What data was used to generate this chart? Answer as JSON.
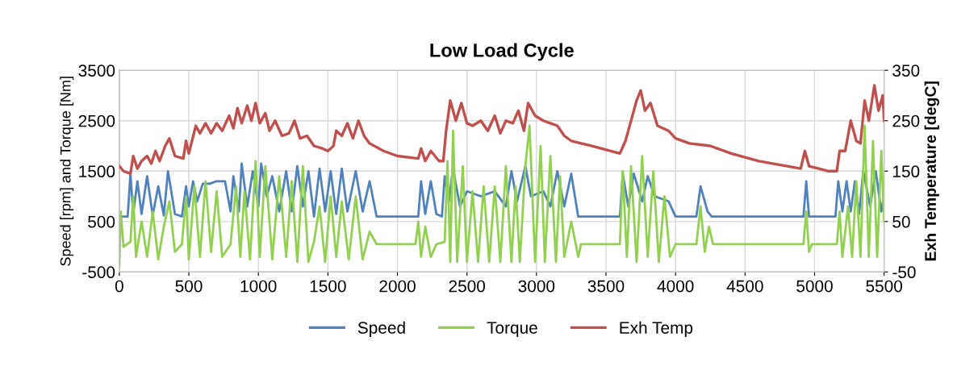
{
  "chart_data": {
    "type": "line",
    "title": "Low Load Cycle",
    "ylabel": "Speed [rpm] and Torque [Nm]",
    "y2label": "Exh Temperature [degC]",
    "xlim": [
      0,
      5500
    ],
    "xticks": [
      0,
      500,
      1000,
      1500,
      2000,
      2500,
      3000,
      3500,
      4000,
      4500,
      5000,
      5500
    ],
    "ylim": [
      -500,
      3500
    ],
    "yticks": [
      -500,
      500,
      1500,
      2500,
      3500
    ],
    "y2lim": [
      -50,
      350
    ],
    "y2ticks": [
      -50,
      50,
      150,
      250,
      350
    ],
    "grid": true,
    "legend": "bottom",
    "marker": "none",
    "line_style": "solid",
    "series": [
      {
        "name": "Speed",
        "color": "#4f81bd",
        "x": [
          0,
          60,
          80,
          100,
          130,
          160,
          200,
          240,
          280,
          320,
          350,
          400,
          450,
          480,
          500,
          530,
          560,
          600,
          650,
          700,
          760,
          800,
          820,
          860,
          880,
          920,
          960,
          1000,
          1020,
          1060,
          1100,
          1150,
          1200,
          1240,
          1280,
          1320,
          1360,
          1400,
          1440,
          1480,
          1520,
          1560,
          1600,
          1640,
          1700,
          1750,
          1800,
          1850,
          2150,
          2170,
          2200,
          2240,
          2280,
          2320,
          2340,
          2370,
          2400,
          2450,
          2500,
          2600,
          2700,
          2780,
          2820,
          2860,
          2920,
          2960,
          3050,
          3100,
          3150,
          3200,
          3250,
          3300,
          3600,
          3620,
          3660,
          3700,
          3760,
          3800,
          3850,
          3950,
          4000,
          4150,
          4180,
          4230,
          4260,
          4920,
          4940,
          4960,
          5150,
          5170,
          5200,
          5230,
          5260,
          5290,
          5320,
          5350,
          5400,
          5440,
          5480,
          5500
        ],
        "values": [
          600,
          600,
          1450,
          650,
          1300,
          650,
          1400,
          620,
          1200,
          620,
          1500,
          650,
          600,
          1200,
          800,
          1300,
          900,
          1250,
          1250,
          1300,
          1300,
          700,
          1400,
          700,
          1650,
          800,
          1500,
          800,
          1650,
          1000,
          1400,
          700,
          1500,
          700,
          1600,
          800,
          1500,
          600,
          1550,
          700,
          1500,
          650,
          1550,
          700,
          1500,
          700,
          1300,
          600,
          600,
          1300,
          650,
          1300,
          650,
          600,
          1400,
          900,
          1550,
          800,
          1100,
          1000,
          1100,
          800,
          1500,
          900,
          1600,
          1000,
          1100,
          800,
          1500,
          800,
          1450,
          600,
          600,
          1450,
          800,
          1450,
          900,
          1400,
          1000,
          900,
          600,
          600,
          1200,
          700,
          600,
          600,
          1300,
          600,
          600,
          1300,
          700,
          1300,
          700,
          1300,
          650,
          1500,
          800,
          1500,
          700,
          1000
        ]
      },
      {
        "name": "Torque",
        "color": "#92d050",
        "x": [
          0,
          10,
          30,
          80,
          100,
          120,
          160,
          200,
          240,
          280,
          320,
          360,
          400,
          450,
          480,
          500,
          540,
          580,
          620,
          660,
          700,
          740,
          800,
          840,
          870,
          900,
          940,
          980,
          1010,
          1050,
          1100,
          1150,
          1200,
          1240,
          1280,
          1320,
          1360,
          1400,
          1440,
          1480,
          1520,
          1560,
          1600,
          1650,
          1700,
          1750,
          1800,
          1850,
          2130,
          2150,
          2170,
          2200,
          2240,
          2280,
          2340,
          2360,
          2380,
          2400,
          2430,
          2470,
          2500,
          2540,
          2580,
          2620,
          2660,
          2700,
          2740,
          2780,
          2820,
          2850,
          2880,
          2920,
          2950,
          2990,
          3030,
          3060,
          3100,
          3140,
          3170,
          3200,
          3250,
          3300,
          3320,
          3600,
          3620,
          3650,
          3680,
          3720,
          3760,
          3800,
          3840,
          3880,
          3920,
          3960,
          4000,
          4150,
          4180,
          4210,
          4240,
          4270,
          4920,
          4940,
          4960,
          4980,
          5160,
          5180,
          5200,
          5240,
          5270,
          5300,
          5330,
          5360,
          5390,
          5420,
          5450,
          5480,
          5500
        ],
        "values": [
          -400,
          700,
          0,
          100,
          1000,
          -200,
          500,
          -200,
          700,
          -250,
          400,
          900,
          -100,
          50,
          1000,
          -250,
          1200,
          -200,
          1300,
          -100,
          1100,
          -200,
          50,
          1200,
          -200,
          1100,
          -250,
          1700,
          -200,
          1600,
          -250,
          1400,
          -200,
          1300,
          -300,
          1600,
          -300,
          100,
          800,
          -300,
          1000,
          -200,
          900,
          -250,
          1000,
          -250,
          300,
          50,
          50,
          500,
          -200,
          400,
          -200,
          50,
          100,
          1700,
          -300,
          2300,
          -300,
          1600,
          -300,
          1100,
          -300,
          1200,
          -300,
          1200,
          -300,
          1600,
          -300,
          1200,
          -300,
          1600,
          2400,
          -300,
          2000,
          -300,
          1800,
          -300,
          1400,
          -200,
          500,
          -200,
          50,
          50,
          1500,
          -200,
          1600,
          -300,
          1800,
          -200,
          1500,
          -300,
          1000,
          -200,
          50,
          50,
          800,
          -100,
          400,
          50,
          50,
          700,
          -100,
          50,
          50,
          700,
          -200,
          800,
          -200,
          1300,
          -200,
          2400,
          -200,
          2100,
          -200,
          1900,
          500
        ]
      },
      {
        "name": "Exh Temp",
        "color": "#c0504d",
        "axis": "y2",
        "x": [
          0,
          30,
          80,
          100,
          130,
          160,
          200,
          230,
          260,
          290,
          330,
          360,
          400,
          460,
          480,
          500,
          550,
          580,
          620,
          660,
          700,
          740,
          790,
          820,
          850,
          880,
          920,
          950,
          980,
          1010,
          1050,
          1080,
          1120,
          1170,
          1220,
          1260,
          1300,
          1350,
          1400,
          1460,
          1500,
          1540,
          1560,
          1600,
          1640,
          1680,
          1720,
          1760,
          1800,
          1900,
          2000,
          2150,
          2170,
          2200,
          2240,
          2300,
          2330,
          2350,
          2380,
          2420,
          2460,
          2500,
          2540,
          2600,
          2650,
          2700,
          2740,
          2780,
          2830,
          2870,
          2910,
          2940,
          2990,
          3050,
          3100,
          3150,
          3200,
          3250,
          3400,
          3600,
          3640,
          3680,
          3720,
          3750,
          3780,
          3820,
          3870,
          3950,
          4000,
          4100,
          4250,
          4400,
          4600,
          4900,
          4930,
          4960,
          5100,
          5160,
          5180,
          5220,
          5260,
          5300,
          5330,
          5360,
          5390,
          5430,
          5460,
          5490,
          5500
        ],
        "values": [
          160,
          150,
          145,
          180,
          155,
          170,
          180,
          165,
          190,
          170,
          200,
          215,
          180,
          175,
          210,
          185,
          240,
          225,
          245,
          225,
          245,
          230,
          260,
          235,
          275,
          245,
          280,
          250,
          285,
          245,
          265,
          230,
          250,
          220,
          225,
          250,
          215,
          220,
          200,
          195,
          190,
          200,
          230,
          220,
          245,
          215,
          250,
          220,
          205,
          190,
          180,
          175,
          195,
          170,
          190,
          170,
          170,
          230,
          290,
          250,
          285,
          245,
          240,
          250,
          230,
          260,
          225,
          250,
          245,
          270,
          230,
          285,
          260,
          250,
          245,
          240,
          220,
          210,
          200,
          185,
          210,
          250,
          290,
          310,
          270,
          285,
          240,
          230,
          215,
          205,
          200,
          185,
          170,
          155,
          190,
          160,
          150,
          150,
          190,
          190,
          250,
          210,
          205,
          290,
          250,
          320,
          270,
          300,
          250
        ]
      }
    ]
  }
}
